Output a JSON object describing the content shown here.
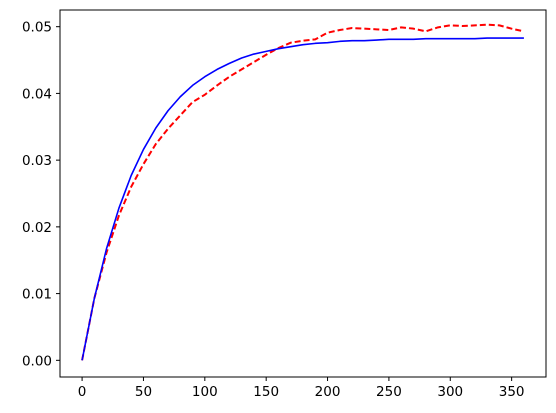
{
  "chart_data": {
    "type": "line",
    "title": "",
    "xlabel": "",
    "ylabel": "",
    "xlim": [
      -18,
      378
    ],
    "ylim": [
      -0.0025,
      0.0525
    ],
    "xticks": [
      0,
      50,
      100,
      150,
      200,
      250,
      300,
      350
    ],
    "xtick_labels": [
      "0",
      "50",
      "100",
      "150",
      "200",
      "250",
      "300",
      "350"
    ],
    "yticks": [
      0.0,
      0.01,
      0.02,
      0.03,
      0.04,
      0.05
    ],
    "ytick_labels": [
      "0.00",
      "0.01",
      "0.02",
      "0.03",
      "0.04",
      "0.05"
    ],
    "grid": false,
    "legend": "none",
    "series": [
      {
        "color": "#ff0000",
        "style": "dashed",
        "x": [
          0,
          10,
          20,
          30,
          40,
          50,
          60,
          70,
          80,
          90,
          100,
          110,
          120,
          130,
          140,
          150,
          160,
          170,
          180,
          190,
          200,
          210,
          220,
          230,
          240,
          250,
          260,
          270,
          280,
          290,
          300,
          310,
          320,
          330,
          340,
          350,
          360
        ],
        "values": [
          0.0,
          0.0093,
          0.0162,
          0.0217,
          0.026,
          0.0294,
          0.0324,
          0.0347,
          0.0367,
          0.0387,
          0.0398,
          0.0412,
          0.0425,
          0.0436,
          0.0447,
          0.0458,
          0.0468,
          0.0476,
          0.0479,
          0.0481,
          0.0491,
          0.0495,
          0.0498,
          0.0497,
          0.0496,
          0.0495,
          0.0499,
          0.0497,
          0.0493,
          0.0499,
          0.0502,
          0.0501,
          0.0502,
          0.0503,
          0.0502,
          0.0497,
          0.0493
        ]
      },
      {
        "color": "#0000ff",
        "style": "solid",
        "x": [
          0,
          10,
          20,
          30,
          40,
          50,
          60,
          70,
          80,
          90,
          100,
          110,
          120,
          130,
          140,
          150,
          160,
          170,
          180,
          190,
          200,
          210,
          220,
          230,
          240,
          250,
          260,
          270,
          280,
          290,
          300,
          310,
          320,
          330,
          340,
          350,
          360
        ],
        "values": [
          0.0,
          0.0093,
          0.0168,
          0.0228,
          0.0277,
          0.0316,
          0.0348,
          0.0374,
          0.0395,
          0.0412,
          0.0425,
          0.0436,
          0.0445,
          0.0453,
          0.0459,
          0.0463,
          0.0467,
          0.047,
          0.0473,
          0.0475,
          0.0476,
          0.0478,
          0.0479,
          0.0479,
          0.048,
          0.0481,
          0.0481,
          0.0481,
          0.0482,
          0.0482,
          0.0482,
          0.0482,
          0.0482,
          0.0483,
          0.0483,
          0.0483,
          0.0483
        ]
      }
    ]
  }
}
